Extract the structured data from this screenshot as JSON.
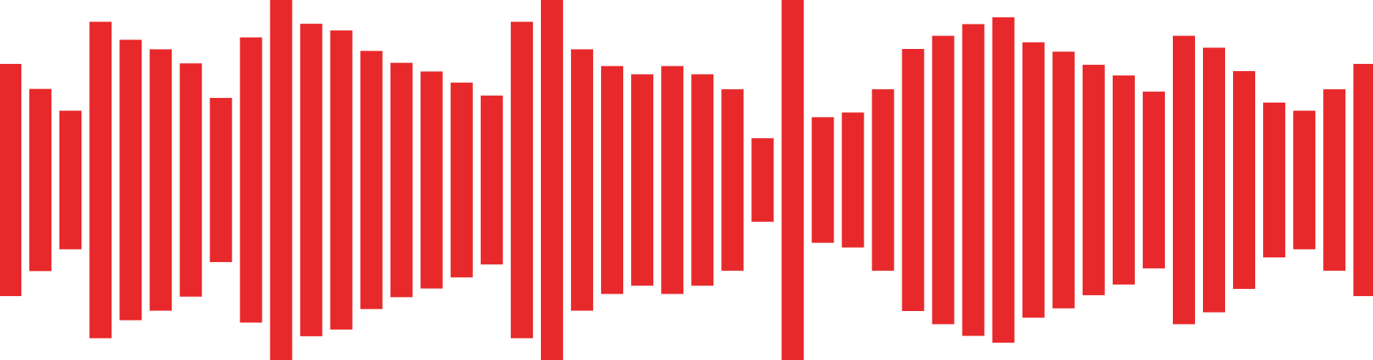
{
  "waveform": {
    "color": "#E8292B",
    "background": "#FFFFFF",
    "bar_heights": [
      0.645,
      0.506,
      0.385,
      0.879,
      0.779,
      0.726,
      0.648,
      0.456,
      0.792,
      1.0,
      0.868,
      0.831,
      0.717,
      0.651,
      0.603,
      0.541,
      0.469,
      0.879,
      1.0,
      0.726,
      0.633,
      0.587,
      0.633,
      0.587,
      0.504,
      0.232,
      1.0,
      0.349,
      0.375,
      0.504,
      0.728,
      0.801,
      0.866,
      0.904,
      0.765,
      0.713,
      0.64,
      0.581,
      0.491,
      0.801,
      0.735,
      0.605,
      0.43,
      0.385,
      0.504,
      0.645
    ]
  }
}
